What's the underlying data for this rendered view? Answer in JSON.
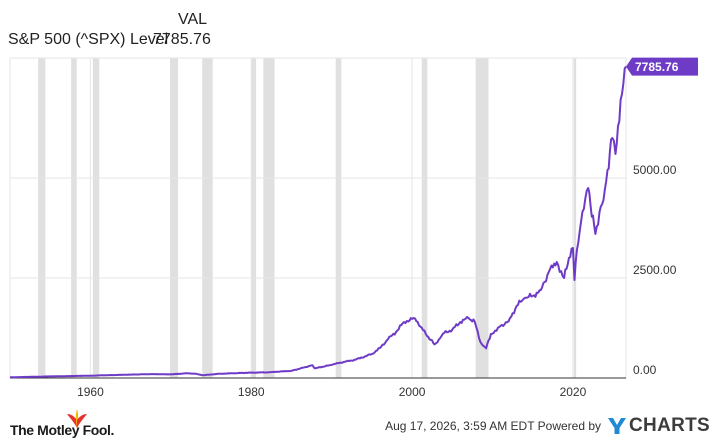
{
  "header": {
    "col_label": "VAL",
    "series_name": "S&P 500 (^SPX) Level",
    "series_value": "7785.76"
  },
  "footer": {
    "brand_left": "The Motley Fool.",
    "timestamp": "Aug 17, 2026, 3:59 AM EDT  Powered by",
    "brand_right": "CHARTS",
    "brand_right_mark": "Y"
  },
  "colors": {
    "line": "#6e3bc7",
    "recession": "#e0e0e0",
    "grid": "#e6e6e6",
    "label_bg": "#6e3bc7",
    "hat_red": "#e5322d",
    "hat_yellow": "#f5b800",
    "ycharts_blue": "#1e8ad6"
  },
  "chart_data": {
    "type": "line",
    "xlim": [
      1950,
      2026.6
    ],
    "ylim": [
      0,
      8000
    ],
    "x_ticks": [
      1960,
      1980,
      2000,
      2020
    ],
    "x_tick_labels": [
      "1960",
      "1980",
      "2000",
      "2020"
    ],
    "y_ticks": [
      0,
      2500,
      5000
    ],
    "y_tick_labels": [
      "0.00",
      "2500.00",
      "5000.00"
    ],
    "last_value_label": "7785.76",
    "grid": true,
    "recessions": [
      [
        1953.5,
        1954.4
      ],
      [
        1957.6,
        1958.3
      ],
      [
        1960.3,
        1961.1
      ],
      [
        1969.9,
        1970.9
      ],
      [
        1973.9,
        1975.2
      ],
      [
        1980.0,
        1980.6
      ],
      [
        1981.5,
        1982.9
      ],
      [
        1990.5,
        1991.2
      ],
      [
        2001.2,
        2001.9
      ],
      [
        2007.9,
        2009.5
      ],
      [
        2020.1,
        2020.4
      ]
    ],
    "series": [
      {
        "x": [
          1950,
          1955,
          1960,
          1965,
          1968,
          1970,
          1972,
          1973,
          1974,
          1976,
          1980,
          1982,
          1985,
          1987.6,
          1987.9,
          1990,
          1991,
          1993,
          1995,
          1996,
          1997,
          1998,
          1999,
          2000.2,
          2000.7,
          2001.7,
          2002.8,
          2003.5,
          2004,
          2005,
          2006,
          2007,
          2007.8,
          2008.5,
          2009.2,
          2009.8,
          2010.5,
          2011,
          2012,
          2013,
          2014,
          2015,
          2016,
          2017,
          2018,
          2018.9,
          2019.5,
          2020,
          2020.2,
          2020.5,
          2021,
          2021.9,
          2022.2,
          2022.8,
          2023.3,
          2023.8,
          2024.3,
          2024.9,
          2025.3,
          2025.6,
          2026.1,
          2026.6
        ],
        "y": [
          17,
          40,
          58,
          85,
          98,
          90,
          118,
          107,
          70,
          105,
          135,
          140,
          180,
          320,
          240,
          330,
          380,
          460,
          600,
          750,
          970,
          1150,
          1400,
          1500,
          1400,
          1100,
          840,
          1000,
          1130,
          1210,
          1400,
          1500,
          1400,
          900,
          740,
          1100,
          1180,
          1300,
          1420,
          1800,
          2000,
          2050,
          2200,
          2650,
          2900,
          2500,
          3000,
          3250,
          2450,
          3200,
          3900,
          4750,
          4300,
          3600,
          4150,
          4450,
          5200,
          6000,
          5600,
          6300,
          7100,
          7785.76
        ]
      }
    ]
  }
}
